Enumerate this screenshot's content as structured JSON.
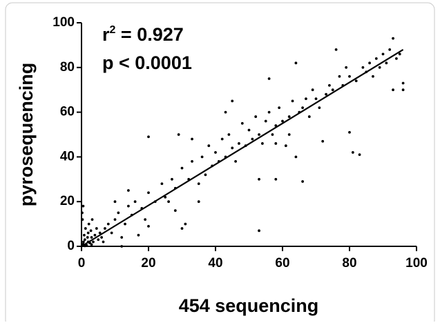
{
  "chart_data": {
    "type": "scatter",
    "xlabel": "454 sequencing",
    "ylabel": "pyrosequencing",
    "annotations": [
      [
        "r",
        "2",
        " = 0.927"
      ],
      "p < 0.0001"
    ],
    "xlim": [
      0,
      100
    ],
    "ylim": [
      0,
      100
    ],
    "xticks": [
      0,
      20,
      40,
      60,
      80,
      100
    ],
    "yticks": [
      0,
      20,
      40,
      60,
      80,
      100
    ],
    "color": "#000000",
    "fit_line": {
      "x": [
        0,
        96
      ],
      "y": [
        0,
        88
      ]
    },
    "x": [
      0.5,
      1,
      1.5,
      2,
      0.8,
      2.5,
      3,
      1.2,
      0.3,
      0.5,
      2,
      3.5,
      4,
      1,
      2.2,
      3,
      5,
      4.5,
      0.2,
      6,
      1.8,
      2.8,
      0.6,
      3.2,
      5.5,
      7,
      6.5,
      8,
      9,
      10,
      11,
      12,
      13,
      14,
      15,
      16,
      18,
      19,
      20,
      20,
      22,
      24,
      25,
      27,
      28,
      30,
      30,
      31,
      32,
      33,
      35,
      36,
      37,
      38,
      39,
      40,
      41,
      42,
      43,
      44,
      45,
      46,
      47,
      48,
      49,
      50,
      51,
      52,
      53,
      53,
      54,
      55,
      56,
      56,
      57,
      58,
      59,
      60,
      61,
      62,
      63,
      64,
      64,
      65,
      66,
      66,
      67,
      68,
      69,
      70,
      71,
      72,
      73,
      74,
      75,
      76,
      77,
      78,
      79,
      80,
      80,
      81,
      82,
      83,
      84,
      85,
      86,
      87,
      88,
      89,
      90,
      91,
      92,
      93,
      93,
      94,
      95,
      96,
      96,
      29,
      33,
      45,
      43,
      58,
      62,
      53,
      58,
      28,
      26,
      17,
      12,
      20,
      35,
      10,
      14
    ],
    "y": [
      1,
      3,
      0.5,
      2,
      5,
      1.5,
      4,
      8,
      12,
      18,
      6,
      2,
      5,
      0.2,
      10,
      0.8,
      3,
      8,
      15,
      4,
      4,
      7,
      2,
      12,
      6,
      8,
      2,
      10,
      6,
      12,
      15,
      4,
      10,
      18,
      14,
      20,
      17,
      12,
      24,
      49,
      20,
      28,
      22,
      30,
      26,
      35,
      8,
      10,
      30,
      38,
      28,
      40,
      32,
      45,
      36,
      42,
      38,
      48,
      40,
      50,
      44,
      38,
      46,
      55,
      45,
      52,
      48,
      58,
      7,
      50,
      46,
      56,
      60,
      75,
      50,
      54,
      62,
      56,
      45,
      58,
      65,
      40,
      82,
      60,
      29,
      62,
      66,
      58,
      70,
      66,
      62,
      47,
      68,
      72,
      70,
      88,
      76,
      72,
      80,
      76,
      51,
      42,
      74,
      41,
      80,
      78,
      82,
      76,
      84,
      80,
      86,
      82,
      88,
      93,
      70,
      84,
      86,
      73,
      70,
      50,
      48,
      65,
      60,
      46,
      50,
      30,
      30,
      16,
      20,
      5,
      0,
      9,
      20,
      20,
      25
    ]
  }
}
